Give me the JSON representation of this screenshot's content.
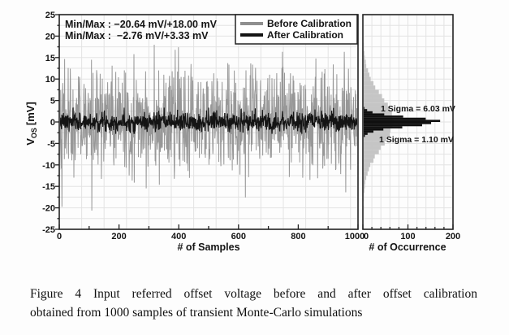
{
  "ui": {
    "left_panel": {
      "minmax_before": "Min/Max : −20.64 mV/+18.00 mV",
      "minmax_after": "Min/Max :  −2.76 mV/+3.33 mV",
      "xlabel": "# of Samples",
      "ylabel_v": "V",
      "ylabel_sub": "OS",
      "ylabel_unit": "[mV]"
    },
    "legend": {
      "before_label": "Before Calibration",
      "after_label": "After Calibration"
    },
    "right_panel": {
      "xlabel": "# of Occurrence",
      "sigma_before": "1 Sigma = 6.03 mV",
      "sigma_after": "1 Sigma = 1.10 mV"
    },
    "caption": {
      "line1": "Figure 4 Input referred offset voltage before and after offset calibration",
      "line2": "obtained from 1000 samples of transient Monte-Carlo simulations"
    },
    "colors": {
      "before": "#989898",
      "after": "#141414",
      "hist_before": "#c5c5c5",
      "hist_after": "#101010",
      "grid": "#e3e3e3",
      "frame": "#222222",
      "annotation_gray": "#9a9a9a"
    }
  },
  "chart_data": [
    {
      "type": "line",
      "title": "",
      "xlabel": "# of Samples",
      "ylabel": "Vos [mV]",
      "xlim": [
        0,
        1000
      ],
      "ylim": [
        -25,
        25
      ],
      "x_ticks": [
        0,
        200,
        400,
        600,
        800,
        1000
      ],
      "y_ticks": [
        25,
        20,
        15,
        10,
        5,
        0,
        -5,
        -10,
        -15,
        -20,
        -25
      ],
      "grid": true,
      "legend_position": "top-right",
      "n_samples": 1000,
      "series": [
        {
          "name": "Before Calibration",
          "color": "#989898",
          "sigma_mV": 6.03,
          "min_mV": -20.64,
          "max_mV": 18.0
        },
        {
          "name": "After Calibration",
          "color": "#141414",
          "sigma_mV": 1.1,
          "min_mV": -2.76,
          "max_mV": 3.33
        }
      ],
      "annotations": [
        "Min/Max : −20.64 mV/+18.00 mV",
        "Min/Max :  −2.76 mV/+3.33 mV"
      ]
    },
    {
      "type": "bar",
      "orientation": "horizontal",
      "xlabel": "# of Occurrence",
      "xlim": [
        0,
        200
      ],
      "ylim": [
        -25,
        25
      ],
      "x_ticks": [
        0,
        100,
        200
      ],
      "grid": true,
      "series": [
        {
          "name": "Before Calibration",
          "color": "#c5c5c5",
          "bin_width_mV": 1.0,
          "bins": [
            [
              18,
              1
            ],
            [
              17,
              1
            ],
            [
              16,
              2
            ],
            [
              15,
              3
            ],
            [
              14,
              5
            ],
            [
              13,
              6
            ],
            [
              12,
              10
            ],
            [
              11,
              13
            ],
            [
              10,
              16
            ],
            [
              9,
              22
            ],
            [
              8,
              26
            ],
            [
              7,
              34
            ],
            [
              6,
              41
            ],
            [
              5,
              46
            ],
            [
              4,
              54
            ],
            [
              3,
              57
            ],
            [
              2,
              63
            ],
            [
              1,
              64
            ],
            [
              0,
              66
            ],
            [
              -1,
              64
            ],
            [
              -2,
              60
            ],
            [
              -3,
              58
            ],
            [
              -4,
              51
            ],
            [
              -5,
              47
            ],
            [
              -6,
              38
            ],
            [
              -7,
              34
            ],
            [
              -8,
              25
            ],
            [
              -9,
              22
            ],
            [
              -10,
              15
            ],
            [
              -11,
              12
            ],
            [
              -12,
              9
            ],
            [
              -13,
              6
            ],
            [
              -14,
              4
            ],
            [
              -15,
              3
            ],
            [
              -16,
              2
            ],
            [
              -17,
              1
            ],
            [
              -18,
              1
            ],
            [
              -20,
              1
            ]
          ]
        },
        {
          "name": "After Calibration",
          "color": "#101010",
          "bin_width_mV": 0.5,
          "bins": [
            [
              3.25,
              2
            ],
            [
              2.75,
              8
            ],
            [
              2.25,
              20
            ],
            [
              1.75,
              46
            ],
            [
              1.25,
              88
            ],
            [
              0.75,
              138
            ],
            [
              0.25,
              170
            ],
            [
              -0.25,
              150
            ],
            [
              -0.75,
              130
            ],
            [
              -1.25,
              86
            ],
            [
              -1.75,
              44
            ],
            [
              -2.25,
              22
            ],
            [
              -2.75,
              9
            ],
            [
              -3.25,
              3
            ]
          ]
        }
      ],
      "annotations": [
        "1 Sigma = 6.03 mV",
        "1 Sigma = 1.10 mV"
      ]
    }
  ]
}
